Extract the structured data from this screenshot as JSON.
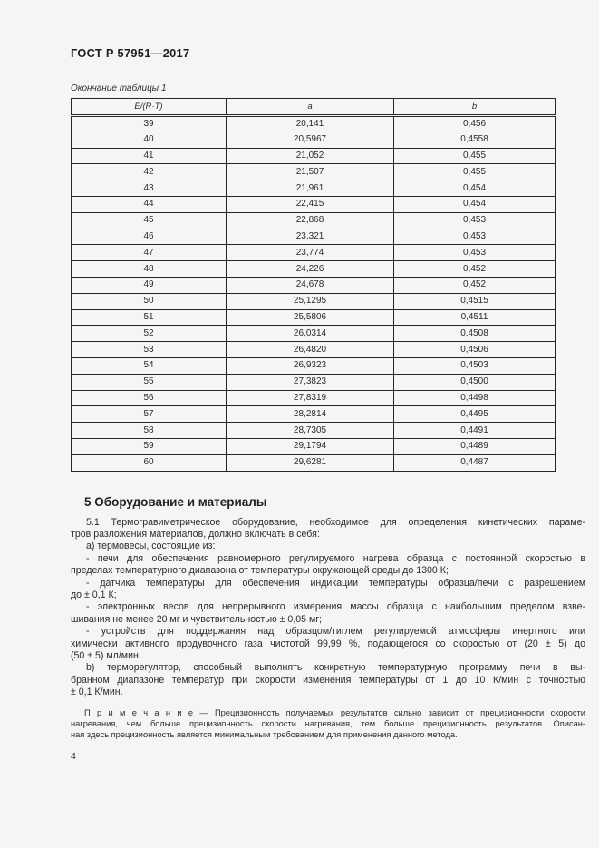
{
  "page": {
    "doc_number": "ГОСТ Р 57951—2017",
    "table_caption": "Окончание таблицы 1",
    "page_number": "4"
  },
  "table": {
    "columns": [
      "E/(R·T)",
      "a",
      "b"
    ],
    "rows": [
      [
        "39",
        "20,141",
        "0,456"
      ],
      [
        "40",
        "20,5967",
        "0,4558"
      ],
      [
        "41",
        "21,052",
        "0,455"
      ],
      [
        "42",
        "21,507",
        "0,455"
      ],
      [
        "43",
        "21,961",
        "0,454"
      ],
      [
        "44",
        "22,415",
        "0,454"
      ],
      [
        "45",
        "22,868",
        "0,453"
      ],
      [
        "46",
        "23,321",
        "0,453"
      ],
      [
        "47",
        "23,774",
        "0,453"
      ],
      [
        "48",
        "24,226",
        "0,452"
      ],
      [
        "49",
        "24,678",
        "0,452"
      ],
      [
        "50",
        "25,1295",
        "0,4515"
      ],
      [
        "51",
        "25,5806",
        "0,4511"
      ],
      [
        "52",
        "26,0314",
        "0,4508"
      ],
      [
        "53",
        "26,4820",
        "0,4506"
      ],
      [
        "54",
        "26,9323",
        "0,4503"
      ],
      [
        "55",
        "27,3823",
        "0,4500"
      ],
      [
        "56",
        "27,8319",
        "0,4498"
      ],
      [
        "57",
        "28,2814",
        "0,4495"
      ],
      [
        "58",
        "28,7305",
        "0,4491"
      ],
      [
        "59",
        "29,1794",
        "0,4489"
      ],
      [
        "60",
        "29,6281",
        "0,4487"
      ]
    ]
  },
  "section": {
    "heading": "5 Оборудование и материалы",
    "paragraphs": [
      {
        "lines": [
          "5.1 Термогравиметрическое оборудование, необходимое для определения кинетических параме-",
          "тров разложения материалов, должно включать в себя:"
        ]
      },
      {
        "lines": [
          "а) термовесы, состоящие из:"
        ]
      },
      {
        "lines": [
          "- печи для обеспечения равномерного регулируемого нагрева образца с постоянной скоростью в",
          "пределах температурного диапазона от температуры окружающей среды до 1300 К;"
        ]
      },
      {
        "lines": [
          "- датчика температуры для обеспечения индикации температуры образца/печи с разрешением",
          "до ± 0,1 К;"
        ]
      },
      {
        "lines": [
          "- электронных весов для непрерывного измерения массы образца с наибольшим пределом взве-",
          "шивания не менее 20 мг и чувствительностью ± 0,05 мг;"
        ]
      },
      {
        "lines": [
          "- устройств для поддержания над образцом/тиглем регулируемой атмосферы инертного или",
          "химически активного продувочного газа чистотой 99,99 %, подающегося со скоростью от (20 ± 5) до",
          "(50 ± 5) мл/мин."
        ]
      },
      {
        "lines": [
          "b) терморегулятор, способный выполнять конкретную температурную программу печи в вы-",
          "бранном диапазоне температур при скорости изменения температуры от 1 до 10 К/мин с точностью",
          "± 0,1 К/мин."
        ]
      }
    ]
  },
  "note": {
    "lines": [
      "П р и м е ч а н и е — Прецизионность получаемых результатов сильно зависит от прецизионности скорости",
      "нагревания, чем больше прецизионность скорости нагревания, тем больше прецизионность результатов. Описан-",
      "ная здесь прецизионность является минимальным требованием для применения данного метода."
    ]
  }
}
